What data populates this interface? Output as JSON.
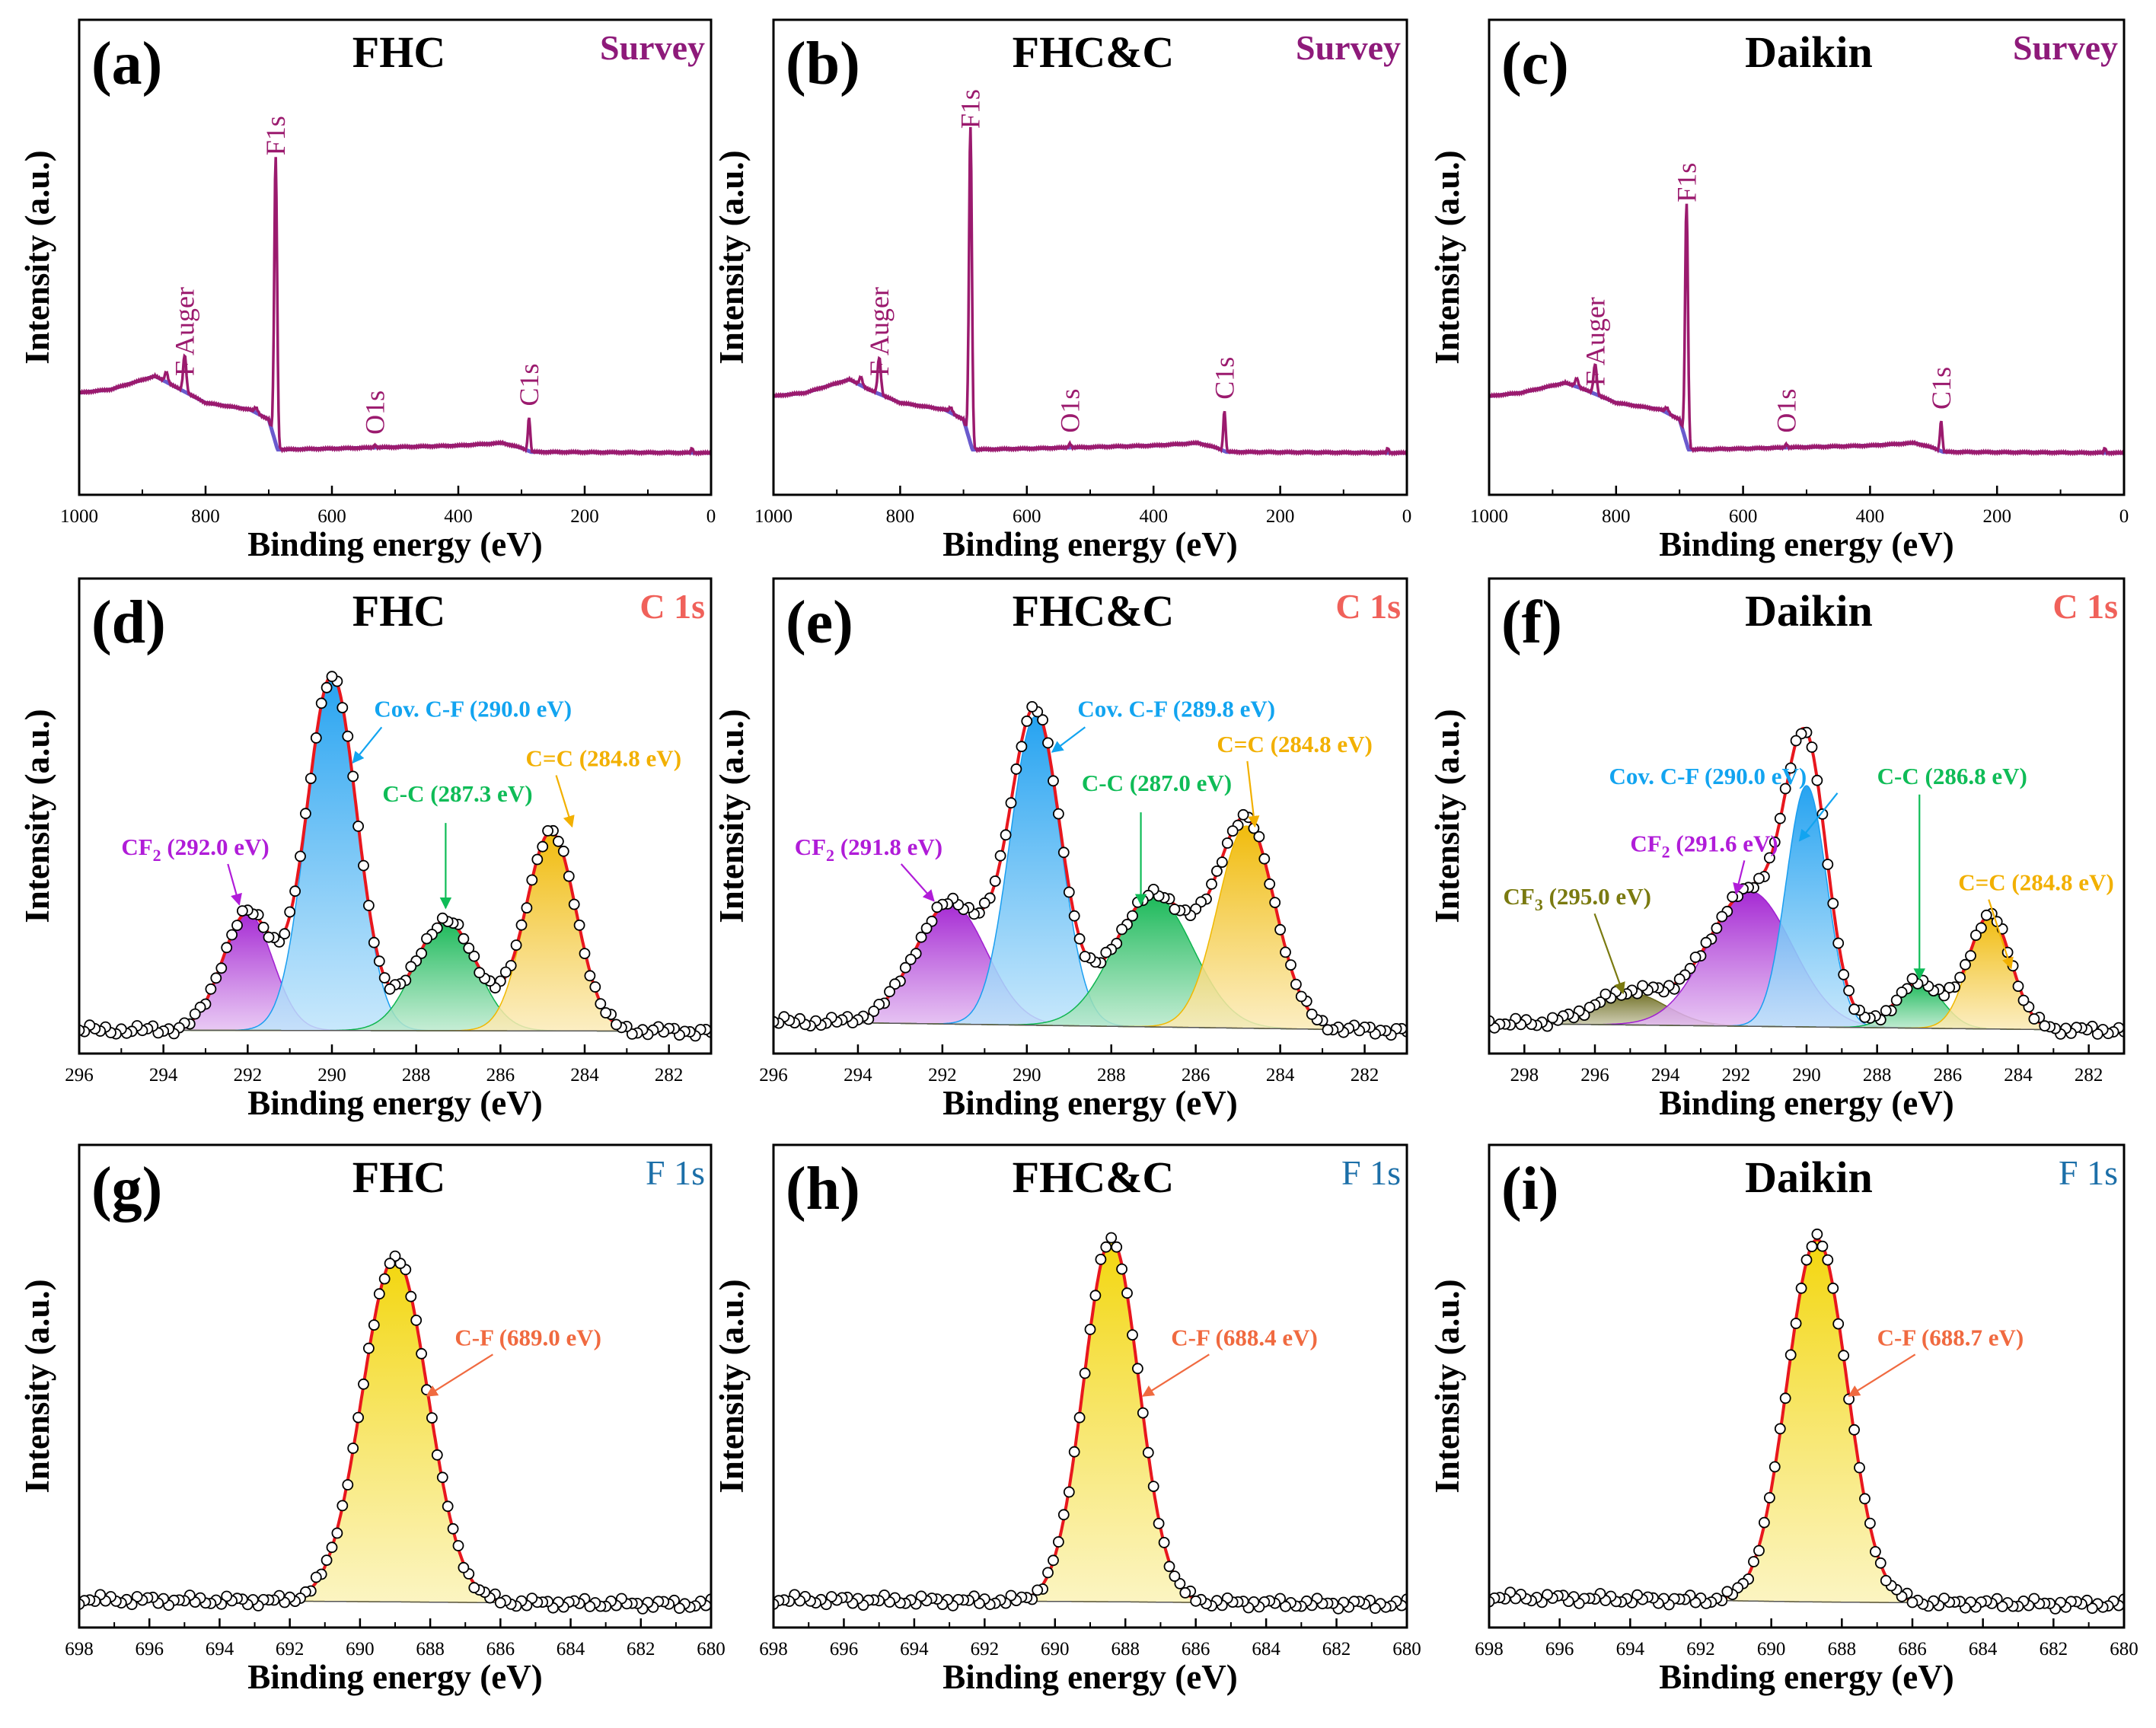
{
  "figure_description": "XPS spectra of FHC, FHC&C and Daikin: survey, C 1s and F 1s panels",
  "colors": {
    "survey_line": "#9b1a6e",
    "survey_bg": "#6a5acd",
    "envelope": "#e8171e",
    "cov_cf": "#1a9ef0",
    "cf2": "#a11fd1",
    "cc": "#0fb550",
    "c_eq_c": "#f0b800",
    "cf3": "#6b6a1c",
    "cf_f1s": "#f2d400",
    "label_survey": "#8e1a7a",
    "label_c1s": "#f0615a",
    "label_f1s": "#1c6fa8",
    "label_cf": "#f06a40",
    "label_cov": "#12a4f0",
    "label_cf2": "#b01cd8",
    "label_cc": "#0fbc57",
    "label_cdc": "#f2b000",
    "label_cf3": "#7a7a10"
  },
  "chart_data": [
    {
      "id": "a",
      "panel_label": "(a)",
      "sample": "FHC",
      "region": "Survey",
      "type": "line",
      "xlabel": "Binding energy (eV)",
      "ylabel": "Intensity (a.u.)",
      "xlim": [
        1000,
        0
      ],
      "ylim": [
        0,
        100
      ],
      "xticks": [
        1000,
        800,
        600,
        400,
        200,
        0
      ],
      "tick_labels": [
        "1000",
        "800",
        "600",
        "400",
        "200",
        "0"
      ],
      "background": [
        [
          1000,
          18
        ],
        [
          950,
          19
        ],
        [
          880,
          23
        ],
        [
          850,
          20
        ],
        [
          800,
          15
        ],
        [
          730,
          13
        ],
        [
          700,
          10
        ],
        [
          686,
          1
        ],
        [
          600,
          1.3
        ],
        [
          400,
          2.2
        ],
        [
          330,
          3
        ],
        [
          300,
          1.5
        ],
        [
          285,
          0.3
        ],
        [
          0,
          0
        ]
      ],
      "peaks": [
        {
          "center": 689,
          "height": 86,
          "width": 3.2
        },
        {
          "center": 833,
          "height": 11,
          "width": 3.5
        },
        {
          "center": 862,
          "height": 3,
          "width": 3.5
        },
        {
          "center": 720,
          "height": 1.5,
          "width": 4
        },
        {
          "center": 288,
          "height": 10,
          "width": 2.6
        },
        {
          "center": 532,
          "height": 0.7,
          "width": 2.5
        },
        {
          "center": 30,
          "height": 1.5,
          "width": 2
        }
      ],
      "annotations": [
        {
          "text": "F Auger",
          "x": 833,
          "y": 23
        },
        {
          "text": "F1s",
          "x": 689,
          "y": 89
        },
        {
          "text": "O1s",
          "x": 532,
          "y": 5.5
        },
        {
          "text": "C1s",
          "x": 288,
          "y": 14
        }
      ]
    },
    {
      "id": "b",
      "panel_label": "(b)",
      "sample": "FHC&C",
      "region": "Survey",
      "type": "line",
      "xlabel": "Binding energy (eV)",
      "ylabel": "Intensity (a.u.)",
      "xlim": [
        1000,
        0
      ],
      "ylim": [
        0,
        100
      ],
      "xticks": [
        1000,
        800,
        600,
        400,
        200,
        0
      ],
      "tick_labels": [
        "1000",
        "800",
        "600",
        "400",
        "200",
        "0"
      ],
      "background": [
        [
          1000,
          17
        ],
        [
          950,
          18
        ],
        [
          880,
          22
        ],
        [
          850,
          19
        ],
        [
          800,
          15
        ],
        [
          730,
          13
        ],
        [
          700,
          10
        ],
        [
          686,
          1
        ],
        [
          600,
          1.3
        ],
        [
          400,
          2.2
        ],
        [
          330,
          3
        ],
        [
          300,
          1.5
        ],
        [
          285,
          0.3
        ],
        [
          0,
          0
        ]
      ],
      "peaks": [
        {
          "center": 689,
          "height": 95,
          "width": 3.2
        },
        {
          "center": 833,
          "height": 11,
          "width": 3.5
        },
        {
          "center": 862,
          "height": 2.5,
          "width": 3.5
        },
        {
          "center": 720,
          "height": 1.5,
          "width": 4
        },
        {
          "center": 288,
          "height": 12,
          "width": 2.6
        },
        {
          "center": 532,
          "height": 1.2,
          "width": 2.5
        },
        {
          "center": 30,
          "height": 1.5,
          "width": 2
        }
      ],
      "annotations": [
        {
          "text": "F Auger",
          "x": 833,
          "y": 23
        },
        {
          "text": "F1s",
          "x": 689,
          "y": 97
        },
        {
          "text": "O1s",
          "x": 532,
          "y": 6
        },
        {
          "text": "C1s",
          "x": 288,
          "y": 16
        }
      ]
    },
    {
      "id": "c",
      "panel_label": "(c)",
      "sample": "Daikin",
      "region": "Survey",
      "type": "line",
      "xlabel": "Binding energy (eV)",
      "ylabel": "Intensity (a.u.)",
      "xlim": [
        1000,
        0
      ],
      "ylim": [
        0,
        100
      ],
      "xticks": [
        1000,
        800,
        600,
        400,
        200,
        0
      ],
      "tick_labels": [
        "1000",
        "800",
        "600",
        "400",
        "200",
        "0"
      ],
      "background": [
        [
          1000,
          17
        ],
        [
          950,
          18
        ],
        [
          880,
          21
        ],
        [
          850,
          19
        ],
        [
          800,
          15
        ],
        [
          730,
          13
        ],
        [
          700,
          10
        ],
        [
          686,
          1
        ],
        [
          600,
          1.3
        ],
        [
          400,
          2.2
        ],
        [
          330,
          3
        ],
        [
          300,
          1.5
        ],
        [
          285,
          0.3
        ],
        [
          0,
          0
        ]
      ],
      "peaks": [
        {
          "center": 689,
          "height": 72,
          "width": 3.2
        },
        {
          "center": 833,
          "height": 9,
          "width": 3.5
        },
        {
          "center": 862,
          "height": 2.5,
          "width": 3.5
        },
        {
          "center": 720,
          "height": 1.5,
          "width": 4
        },
        {
          "center": 288,
          "height": 9,
          "width": 2.6
        },
        {
          "center": 532,
          "height": 1.0,
          "width": 2.5
        },
        {
          "center": 30,
          "height": 1.5,
          "width": 2
        }
      ],
      "annotations": [
        {
          "text": "F Auger",
          "x": 833,
          "y": 20
        },
        {
          "text": "F1s",
          "x": 689,
          "y": 75
        },
        {
          "text": "O1s",
          "x": 532,
          "y": 6
        },
        {
          "text": "C1s",
          "x": 288,
          "y": 13
        }
      ]
    },
    {
      "id": "d",
      "panel_label": "(d)",
      "sample": "FHC",
      "region": "C 1s",
      "type": "area",
      "xlabel": "Binding energy (eV)",
      "ylabel": "Intensity (a.u.)",
      "xlim": [
        296,
        281
      ],
      "ylim": [
        0,
        100
      ],
      "xticks": [
        296,
        294,
        292,
        290,
        288,
        286,
        284,
        282
      ],
      "tick_labels": [
        "296",
        "294",
        "292",
        "290",
        "288",
        "286",
        "284",
        "282"
      ],
      "background": [
        [
          296,
          0.6
        ],
        [
          281,
          0.3
        ]
      ],
      "components": [
        {
          "label": "CF2 (292.0 eV)",
          "center": 292.0,
          "height": 33,
          "fwhm": 1.4,
          "color": "#a11fd1"
        },
        {
          "label": "Cov. C-F (290.0 eV)",
          "center": 290.0,
          "height": 100,
          "fwhm": 1.4,
          "color": "#1a9ef0"
        },
        {
          "label": "C-C (287.3 eV)",
          "center": 287.3,
          "height": 31,
          "fwhm": 1.7,
          "color": "#0fb550"
        },
        {
          "label": "C=C (284.8 eV)",
          "center": 284.8,
          "height": 56,
          "fwhm": 1.4,
          "color": "#f0b800"
        }
      ],
      "annotations": [
        {
          "text": "CF",
          "sub": "2",
          "rest": " (292.0 eV)",
          "color_key": "label_cf2",
          "x": 295.0,
          "y": 50,
          "tx": 292.2,
          "ty": 36
        },
        {
          "text": "Cov. C-F (290.0 eV)",
          "color_key": "label_cov",
          "x": 289.0,
          "y": 89,
          "tx": 289.5,
          "ty": 76
        },
        {
          "text": "C-C (287.3 eV)",
          "color_key": "label_cc",
          "x": 288.8,
          "y": 65,
          "tx": 287.3,
          "ty": 35
        },
        {
          "text": "C=C (284.8 eV)",
          "color_key": "label_cdc",
          "x": 285.4,
          "y": 75,
          "tx": 284.3,
          "ty": 58
        }
      ]
    },
    {
      "id": "e",
      "panel_label": "(e)",
      "sample": "FHC&C",
      "region": "C 1s",
      "type": "area",
      "xlabel": "Binding energy (eV)",
      "ylabel": "Intensity (a.u.)",
      "xlim": [
        296,
        281
      ],
      "ylim": [
        0,
        100
      ],
      "xticks": [
        296,
        294,
        292,
        290,
        288,
        286,
        284,
        282
      ],
      "tick_labels": [
        "296",
        "294",
        "292",
        "290",
        "288",
        "286",
        "284",
        "282"
      ],
      "background": [
        [
          296,
          3
        ],
        [
          281,
          0.5
        ]
      ],
      "components": [
        {
          "label": "CF2 (291.8 eV)",
          "center": 291.8,
          "height": 34,
          "fwhm": 2.0,
          "color": "#a11fd1"
        },
        {
          "label": "Cov. C-F (289.8 eV)",
          "center": 289.8,
          "height": 87,
          "fwhm": 1.4,
          "color": "#1a9ef0"
        },
        {
          "label": "C-C (287.0 eV)",
          "center": 287.0,
          "height": 37,
          "fwhm": 2.2,
          "color": "#0fb550"
        },
        {
          "label": "C=C (284.8 eV)",
          "center": 284.8,
          "height": 57,
          "fwhm": 1.6,
          "color": "#f0b800"
        }
      ],
      "annotations": [
        {
          "text": "CF",
          "sub": "2",
          "rest": " (291.8 eV)",
          "color_key": "label_cf2",
          "x": 295.5,
          "y": 50,
          "tx": 292.2,
          "ty": 37
        },
        {
          "text": "Cov. C-F (289.8 eV)",
          "color_key": "label_cov",
          "x": 288.8,
          "y": 89,
          "tx": 289.4,
          "ty": 79
        },
        {
          "text": "C-C (287.0 eV)",
          "color_key": "label_cc",
          "x": 288.7,
          "y": 68,
          "tx": 287.3,
          "ty": 36
        },
        {
          "text": "C=C (284.8 eV)",
          "color_key": "label_cdc",
          "x": 285.5,
          "y": 79,
          "tx": 284.6,
          "ty": 58
        }
      ]
    },
    {
      "id": "f",
      "panel_label": "(f)",
      "sample": "Daikin",
      "region": "C 1s",
      "type": "area",
      "xlabel": "Binding energy (eV)",
      "ylabel": "Intensity (a.u.)",
      "xlim": [
        299,
        281
      ],
      "ylim": [
        0,
        100
      ],
      "xticks": [
        298,
        296,
        294,
        292,
        290,
        288,
        286,
        284,
        282
      ],
      "tick_labels": [
        "298",
        "296",
        "294",
        "292",
        "290",
        "288",
        "286",
        "284",
        "282"
      ],
      "background": [
        [
          299,
          2.5
        ],
        [
          281,
          0.5
        ]
      ],
      "components": [
        {
          "label": "CF3 (295.0 eV)",
          "center": 295.0,
          "height": 9,
          "fwhm": 2.4,
          "color": "#6b6a1c"
        },
        {
          "label": "CF2 (291.6 eV)",
          "center": 291.6,
          "height": 38,
          "fwhm": 2.8,
          "color": "#a11fd1"
        },
        {
          "label": "Cov. C-F (290.0 eV)",
          "center": 290.0,
          "height": 68,
          "fwhm": 1.35,
          "color": "#1a9ef0"
        },
        {
          "label": "C-C (286.8 eV)",
          "center": 286.8,
          "height": 13,
          "fwhm": 1.5,
          "color": "#0fb550"
        },
        {
          "label": "C=C (284.8 eV)",
          "center": 284.8,
          "height": 32,
          "fwhm": 1.4,
          "color": "#f0b800"
        }
      ],
      "annotations": [
        {
          "text": "CF",
          "sub": "3",
          "rest": " (295.0 eV)",
          "color_key": "label_cf3",
          "x": 298.6,
          "y": 36,
          "tx": 295.2,
          "ty": 11
        },
        {
          "text": "CF",
          "sub": "2",
          "rest": " (291.6 eV)",
          "color_key": "label_cf2",
          "x": 295.0,
          "y": 51,
          "tx": 292.0,
          "ty": 39
        },
        {
          "text": "Cov. C-F (290.0 eV)",
          "color_key": "label_cov",
          "x": 295.6,
          "y": 70,
          "tx": 290.2,
          "ty": 54
        },
        {
          "text": "C-C (286.8 eV)",
          "color_key": "label_cc",
          "x": 288.0,
          "y": 70,
          "tx": 286.8,
          "ty": 15
        },
        {
          "text": "C=C (284.8 eV)",
          "color_key": "label_cdc",
          "x": 285.7,
          "y": 40,
          "tx": 284.2,
          "ty": 18
        }
      ]
    },
    {
      "id": "g",
      "panel_label": "(g)",
      "sample": "FHC",
      "region": "F 1s",
      "type": "area",
      "xlabel": "Binding energy (eV)",
      "ylabel": "Intensity (a.u.)",
      "xlim": [
        698,
        680
      ],
      "ylim": [
        0,
        100
      ],
      "xticks": [
        698,
        696,
        694,
        692,
        690,
        688,
        686,
        684,
        682,
        680
      ],
      "tick_labels": [
        "698",
        "696",
        "694",
        "692",
        "690",
        "688",
        "686",
        "684",
        "682",
        "680"
      ],
      "background": [
        [
          698,
          1.8
        ],
        [
          689,
          1.2
        ],
        [
          680,
          0.5
        ]
      ],
      "components": [
        {
          "label": "C-F (689.0 eV)",
          "center": 689.0,
          "height": 95,
          "fwhm": 2.2,
          "color": "#f2d400"
        }
      ],
      "annotations": [
        {
          "text": "C-F (689.0 eV)",
          "color_key": "label_cf",
          "x": 687.3,
          "y": 72,
          "tx": 688.1,
          "ty": 58
        }
      ]
    },
    {
      "id": "h",
      "panel_label": "(h)",
      "sample": "FHC&C",
      "region": "F 1s",
      "type": "area",
      "xlabel": "Binding energy (eV)",
      "ylabel": "Intensity (a.u.)",
      "xlim": [
        698,
        680
      ],
      "ylim": [
        0,
        100
      ],
      "xticks": [
        698,
        696,
        694,
        692,
        690,
        688,
        686,
        684,
        682,
        680
      ],
      "tick_labels": [
        "698",
        "696",
        "694",
        "692",
        "690",
        "688",
        "686",
        "684",
        "682",
        "680"
      ],
      "background": [
        [
          698,
          1.8
        ],
        [
          688,
          1.2
        ],
        [
          680,
          0.5
        ]
      ],
      "components": [
        {
          "label": "C-F (688.4 eV)",
          "center": 688.4,
          "height": 100,
          "fwhm": 1.85,
          "color": "#f2d400"
        }
      ],
      "annotations": [
        {
          "text": "C-F (688.4 eV)",
          "color_key": "label_cf",
          "x": 686.7,
          "y": 72,
          "tx": 687.5,
          "ty": 58
        }
      ]
    },
    {
      "id": "i",
      "panel_label": "(i)",
      "sample": "Daikin",
      "region": "F 1s",
      "type": "area",
      "xlabel": "Binding energy (eV)",
      "ylabel": "Intensity (a.u.)",
      "xlim": [
        698,
        680
      ],
      "ylim": [
        0,
        100
      ],
      "xticks": [
        698,
        696,
        694,
        692,
        690,
        688,
        686,
        684,
        682,
        680
      ],
      "tick_labels": [
        "698",
        "696",
        "694",
        "692",
        "690",
        "688",
        "686",
        "684",
        "682",
        "680"
      ],
      "background": [
        [
          698,
          2.5
        ],
        [
          689,
          1.2
        ],
        [
          680,
          0.5
        ]
      ],
      "components": [
        {
          "label": "C-F (688.7 eV)",
          "center": 688.7,
          "height": 100,
          "fwhm": 2.0,
          "color": "#f2d400"
        }
      ],
      "annotations": [
        {
          "text": "C-F (688.7 eV)",
          "color_key": "label_cf",
          "x": 687.0,
          "y": 72,
          "tx": 687.8,
          "ty": 58
        }
      ]
    }
  ]
}
